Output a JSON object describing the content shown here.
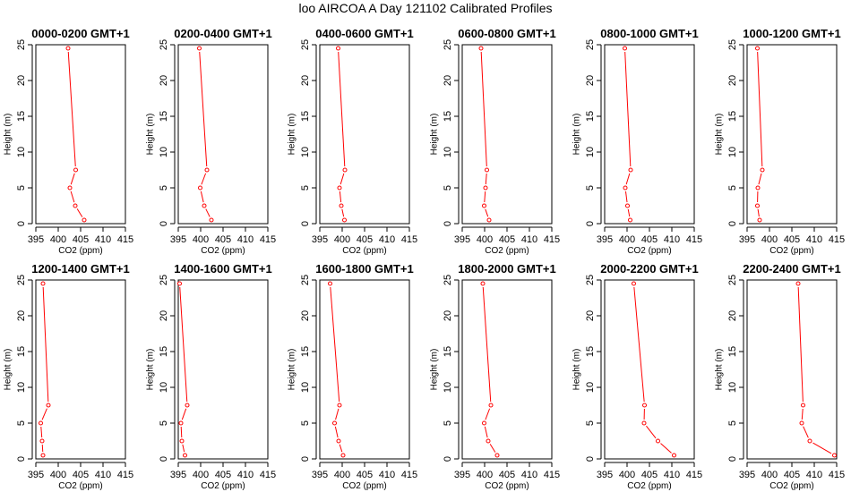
{
  "title": "loo AIRCOA A  Day 121102  Calibrated Profiles",
  "colors": {
    "line": "#ff0000",
    "axis": "#000000",
    "background": "#ffffff"
  },
  "chart_data": [
    {
      "type": "line",
      "title": "0000-0200 GMT+1",
      "xlabel": "CO2 (ppm)",
      "ylabel": "Height (m)",
      "xlim": [
        395,
        415
      ],
      "ylim": [
        0,
        25
      ],
      "xticks": [
        395,
        400,
        405,
        410,
        415
      ],
      "yticks": [
        0,
        5,
        10,
        15,
        20,
        25
      ],
      "series": [
        {
          "x": [
            405.8,
            403.8,
            402.6,
            403.9,
            402.2
          ],
          "y": [
            0.5,
            2.5,
            5,
            7.5,
            24.5
          ]
        }
      ]
    },
    {
      "type": "line",
      "title": "0200-0400 GMT+1",
      "xlabel": "CO2 (ppm)",
      "ylabel": "Height (m)",
      "xlim": [
        395,
        415
      ],
      "ylim": [
        0,
        25
      ],
      "xticks": [
        395,
        400,
        405,
        410,
        415
      ],
      "yticks": [
        0,
        5,
        10,
        15,
        20,
        25
      ],
      "series": [
        {
          "x": [
            402.4,
            400.8,
            399.9,
            401.4,
            399.7
          ],
          "y": [
            0.5,
            2.5,
            5,
            7.5,
            24.5
          ]
        }
      ]
    },
    {
      "type": "line",
      "title": "0400-0600 GMT+1",
      "xlabel": "CO2 (ppm)",
      "ylabel": "Height (m)",
      "xlim": [
        395,
        415
      ],
      "ylim": [
        0,
        25
      ],
      "xticks": [
        395,
        400,
        405,
        410,
        415
      ],
      "yticks": [
        0,
        5,
        10,
        15,
        20,
        25
      ],
      "series": [
        {
          "x": [
            400.5,
            399.8,
            399.4,
            400.6,
            399.1
          ],
          "y": [
            0.5,
            2.5,
            5,
            7.5,
            24.5
          ]
        }
      ]
    },
    {
      "type": "line",
      "title": "0600-0800 GMT+1",
      "xlabel": "CO2 (ppm)",
      "ylabel": "Height (m)",
      "xlim": [
        395,
        415
      ],
      "ylim": [
        0,
        25
      ],
      "xticks": [
        395,
        400,
        405,
        410,
        415
      ],
      "yticks": [
        0,
        5,
        10,
        15,
        20,
        25
      ],
      "series": [
        {
          "x": [
            401.0,
            399.9,
            400.2,
            400.5,
            399.2
          ],
          "y": [
            0.5,
            2.5,
            5,
            7.5,
            24.5
          ]
        }
      ]
    },
    {
      "type": "line",
      "title": "0800-1000 GMT+1",
      "xlabel": "CO2 (ppm)",
      "ylabel": "Height (m)",
      "xlim": [
        395,
        415
      ],
      "ylim": [
        0,
        25
      ],
      "xticks": [
        395,
        400,
        405,
        410,
        415
      ],
      "yticks": [
        0,
        5,
        10,
        15,
        20,
        25
      ],
      "series": [
        {
          "x": [
            400.7,
            400.1,
            399.6,
            400.8,
            399.5
          ],
          "y": [
            0.5,
            2.5,
            5,
            7.5,
            24.5
          ]
        }
      ]
    },
    {
      "type": "line",
      "title": "1000-1200 GMT+1",
      "xlabel": "CO2 (ppm)",
      "ylabel": "Height (m)",
      "xlim": [
        395,
        415
      ],
      "ylim": [
        0,
        25
      ],
      "xticks": [
        395,
        400,
        405,
        410,
        415
      ],
      "yticks": [
        0,
        5,
        10,
        15,
        20,
        25
      ],
      "series": [
        {
          "x": [
            397.8,
            397.3,
            397.4,
            398.4,
            397.3
          ],
          "y": [
            0.5,
            2.5,
            5,
            7.5,
            24.5
          ]
        }
      ]
    },
    {
      "type": "line",
      "title": "1200-1400 GMT+1",
      "xlabel": "CO2 (ppm)",
      "ylabel": "Height (m)",
      "xlim": [
        395,
        415
      ],
      "ylim": [
        0,
        25
      ],
      "xticks": [
        395,
        400,
        405,
        410,
        415
      ],
      "yticks": [
        0,
        5,
        10,
        15,
        20,
        25
      ],
      "series": [
        {
          "x": [
            396.6,
            396.4,
            396.1,
            397.8,
            396.6
          ],
          "y": [
            0.5,
            2.5,
            5,
            7.5,
            24.5
          ]
        }
      ]
    },
    {
      "type": "line",
      "title": "1400-1600 GMT+1",
      "xlabel": "CO2 (ppm)",
      "ylabel": "Height (m)",
      "xlim": [
        395,
        415
      ],
      "ylim": [
        0,
        25
      ],
      "xticks": [
        395,
        400,
        405,
        410,
        415
      ],
      "yticks": [
        0,
        5,
        10,
        15,
        20,
        25
      ],
      "series": [
        {
          "x": [
            396.5,
            395.8,
            395.6,
            397.0,
            395.3
          ],
          "y": [
            0.5,
            2.5,
            5,
            7.5,
            24.5
          ]
        }
      ]
    },
    {
      "type": "line",
      "title": "1600-1800 GMT+1",
      "xlabel": "CO2 (ppm)",
      "ylabel": "Height (m)",
      "xlim": [
        395,
        415
      ],
      "ylim": [
        0,
        25
      ],
      "xticks": [
        395,
        400,
        405,
        410,
        415
      ],
      "yticks": [
        0,
        5,
        10,
        15,
        20,
        25
      ],
      "series": [
        {
          "x": [
            400.2,
            399.2,
            398.3,
            399.4,
            397.3
          ],
          "y": [
            0.5,
            2.5,
            5,
            7.5,
            24.5
          ]
        }
      ]
    },
    {
      "type": "line",
      "title": "1800-2000 GMT+1",
      "xlabel": "CO2 (ppm)",
      "ylabel": "Height (m)",
      "xlim": [
        395,
        415
      ],
      "ylim": [
        0,
        25
      ],
      "xticks": [
        395,
        400,
        405,
        410,
        415
      ],
      "yticks": [
        0,
        5,
        10,
        15,
        20,
        25
      ],
      "series": [
        {
          "x": [
            402.8,
            400.8,
            399.9,
            401.4,
            399.6
          ],
          "y": [
            0.5,
            2.5,
            5,
            7.5,
            24.5
          ]
        }
      ]
    },
    {
      "type": "line",
      "title": "2000-2200 GMT+1",
      "xlabel": "CO2 (ppm)",
      "ylabel": "Height (m)",
      "xlim": [
        395,
        415
      ],
      "ylim": [
        0,
        25
      ],
      "xticks": [
        395,
        400,
        405,
        410,
        415
      ],
      "yticks": [
        0,
        5,
        10,
        15,
        20,
        25
      ],
      "series": [
        {
          "x": [
            410.5,
            406.9,
            403.8,
            403.9,
            401.5
          ],
          "y": [
            0.5,
            2.5,
            5,
            7.5,
            24.5
          ]
        }
      ]
    },
    {
      "type": "line",
      "title": "2200-2400 GMT+1",
      "xlabel": "CO2 (ppm)",
      "ylabel": "Height (m)",
      "xlim": [
        395,
        415
      ],
      "ylim": [
        0,
        25
      ],
      "xticks": [
        395,
        400,
        405,
        410,
        415
      ],
      "yticks": [
        0,
        5,
        10,
        15,
        20,
        25
      ],
      "series": [
        {
          "x": [
            414.5,
            409.0,
            407.2,
            407.5,
            406.4
          ],
          "y": [
            0.5,
            2.5,
            5,
            7.5,
            24.5
          ]
        }
      ]
    }
  ]
}
